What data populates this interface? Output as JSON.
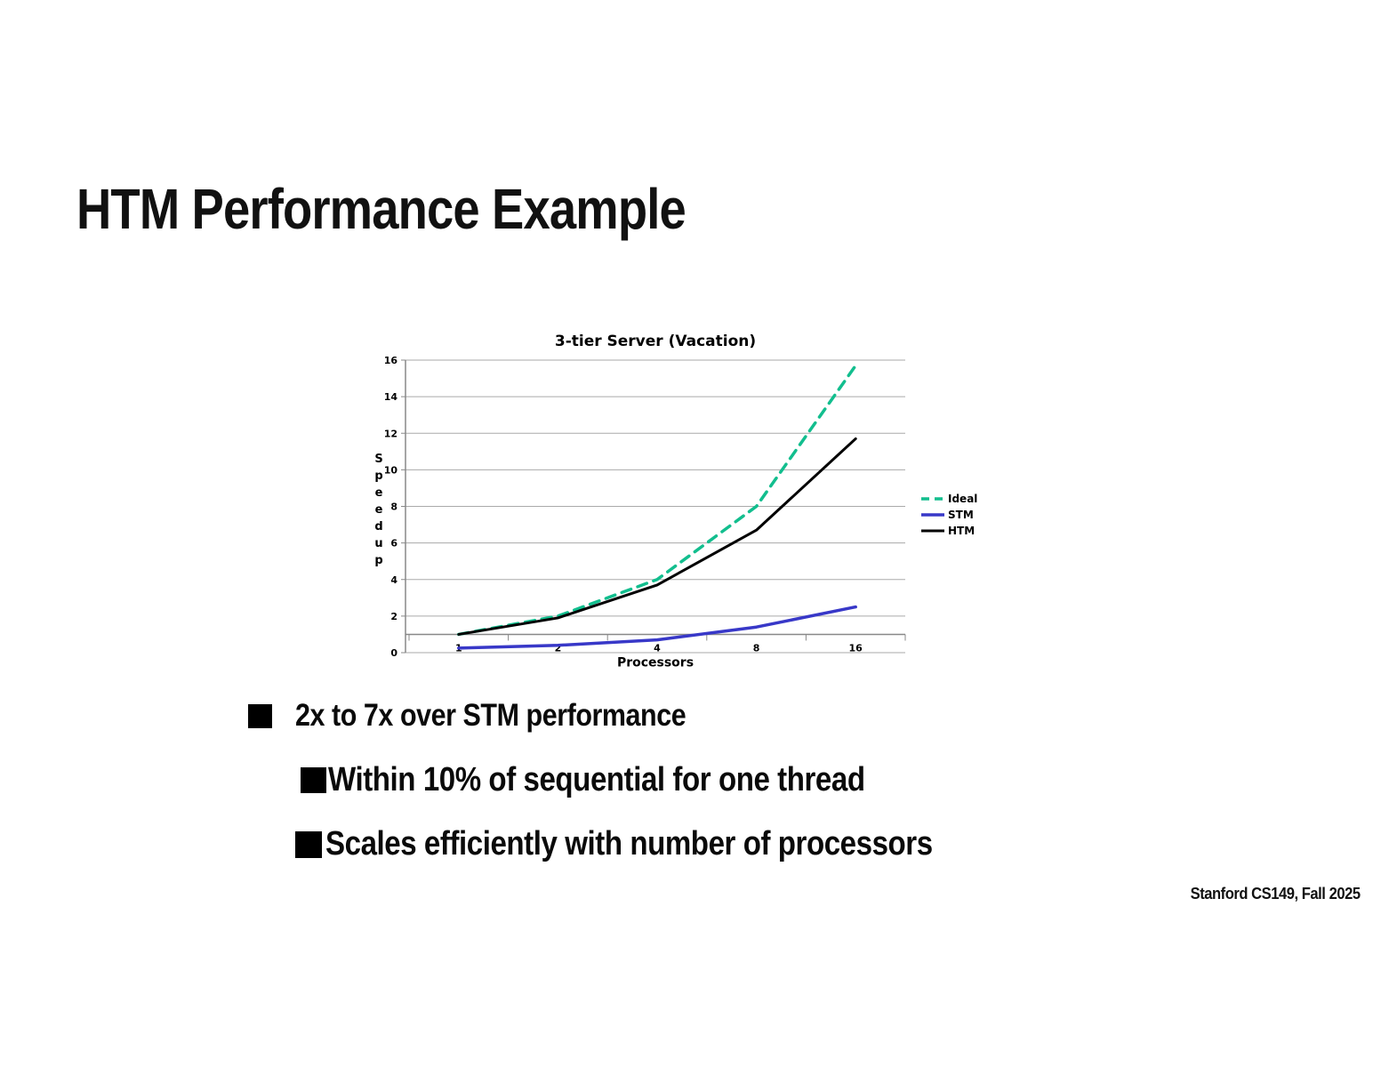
{
  "slide": {
    "title": "HTM Performance Example",
    "bullets": [
      {
        "level": 1,
        "text": "2x to 7x over STM performance"
      },
      {
        "level": 2,
        "text": "Within 10% of sequential for one thread"
      },
      {
        "level": 2,
        "text": "Scales efficiently with number of processors"
      }
    ],
    "footer": "Stanford CS149, Fall 2025"
  },
  "chart_data": {
    "type": "line",
    "title": "3-tier Server (Vacation)",
    "xlabel": "Processors",
    "ylabel": "Speedup",
    "x_scale": "categorical-log2",
    "categories": [
      1,
      2,
      4,
      8,
      16
    ],
    "ylim": [
      0,
      16
    ],
    "ytick_step": 2,
    "grid": "horizontal",
    "legend_position": "right",
    "category_axis_cross": 1,
    "colors": {
      "gridline": "#aaaaaa",
      "axis": "#888888"
    },
    "series": [
      {
        "name": "Ideal",
        "color": "#12BE8E",
        "style": "dashed",
        "width": 3.5,
        "values": [
          1,
          2,
          4,
          8,
          15.7
        ]
      },
      {
        "name": "STM",
        "color": "#3838C8",
        "style": "solid",
        "width": 3.5,
        "values": [
          0.25,
          0.4,
          0.7,
          1.4,
          2.5
        ]
      },
      {
        "name": "HTM",
        "color": "#000000",
        "style": "solid",
        "width": 3,
        "values": [
          1,
          1.9,
          3.7,
          6.7,
          11.7
        ]
      }
    ]
  }
}
